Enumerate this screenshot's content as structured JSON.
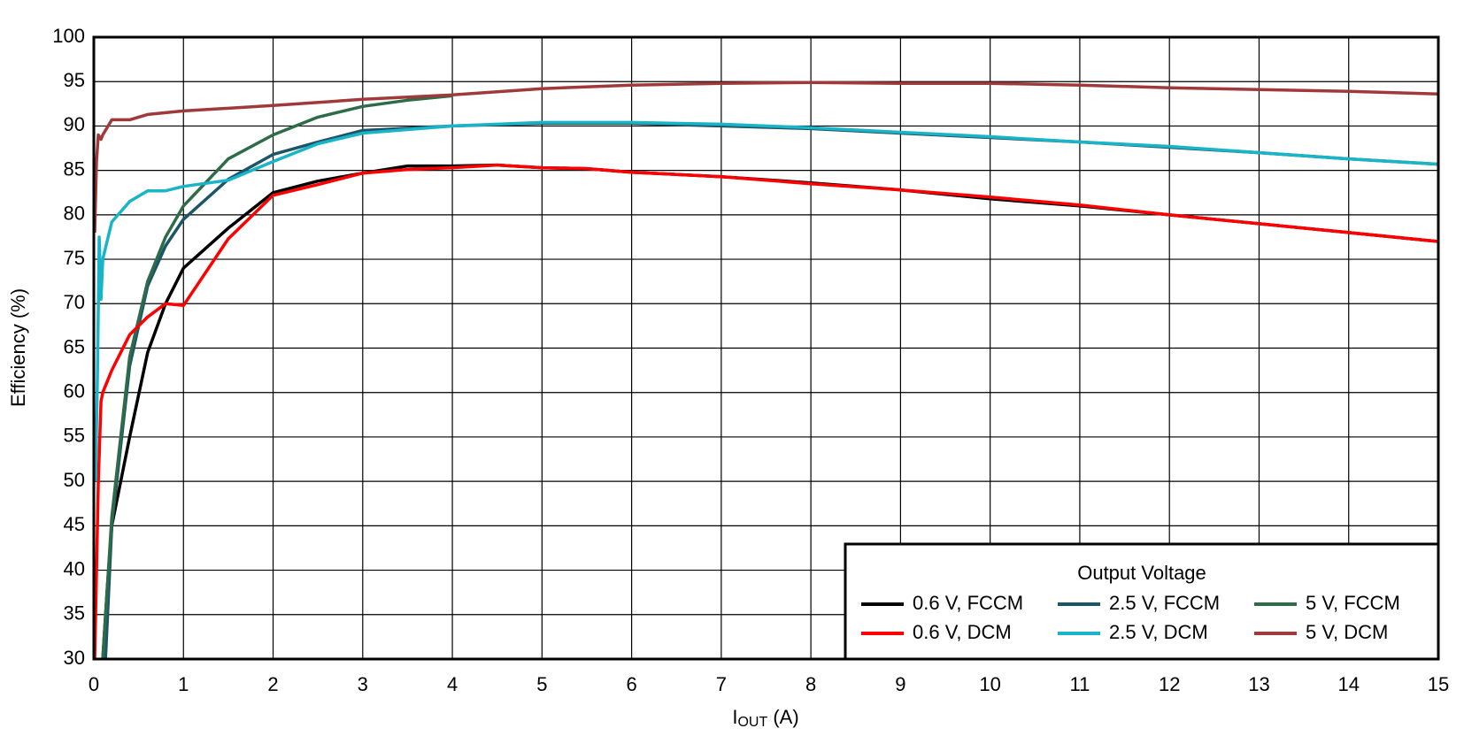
{
  "chart_data": {
    "type": "line",
    "x_label": {
      "main": "I",
      "sub": "OUT",
      "suffix": " (A)"
    },
    "y_label": "Efficiency (%)",
    "legend_title": "Output Voltage",
    "xlim": [
      0,
      15
    ],
    "xticks": [
      0,
      1,
      2,
      3,
      4,
      5,
      6,
      7,
      8,
      9,
      10,
      11,
      12,
      13,
      14,
      15
    ],
    "ylim": [
      30,
      100
    ],
    "yticks": [
      30,
      35,
      40,
      45,
      50,
      55,
      60,
      65,
      70,
      75,
      80,
      85,
      90,
      95,
      100
    ],
    "grid": true,
    "legend_position": "lower right",
    "series": [
      {
        "name": "0.6 V, FCCM",
        "color": "#000000",
        "x": [
          0.1,
          0.15,
          0.2,
          0.4,
          0.6,
          0.8,
          1,
          1.5,
          2,
          2.5,
          3,
          3.5,
          4,
          4.5,
          5,
          5.5,
          6,
          7,
          8,
          9,
          10,
          11,
          12,
          13,
          14,
          15
        ],
        "values": [
          30,
          38,
          45,
          55,
          64.5,
          70,
          74,
          78.5,
          82.5,
          83.8,
          84.7,
          85.5,
          85.5,
          85.6,
          85.3,
          85.2,
          84.8,
          84.3,
          83.6,
          82.8,
          81.8,
          81,
          80,
          79,
          78,
          77
        ]
      },
      {
        "name": "2.5 V, FCCM",
        "color": "#1d5568",
        "x": [
          0.13,
          0.2,
          0.4,
          0.6,
          0.8,
          1,
          1.5,
          2,
          2.5,
          3,
          4,
          5,
          6,
          7,
          8,
          9,
          10,
          11,
          12,
          13,
          14,
          15
        ],
        "values": [
          30,
          45,
          63,
          72,
          76.5,
          79.5,
          84,
          86.8,
          88.2,
          89.5,
          90,
          90.3,
          90.3,
          90,
          89.7,
          89.2,
          88.7,
          88.2,
          87.6,
          87,
          86.3,
          85.7
        ]
      },
      {
        "name": "5 V, FCCM",
        "color": "#2e6b48",
        "x": [
          0.1,
          0.2,
          0.4,
          0.6,
          0.8,
          1,
          1.5,
          2,
          2.5,
          3,
          3.5,
          4
        ],
        "values": [
          30,
          46,
          64,
          72.5,
          77.5,
          81,
          86.3,
          89,
          91,
          92.2,
          92.9,
          93.4
        ]
      },
      {
        "name": "0.6 V, DCM",
        "color": "#ff0000",
        "x": [
          0.01,
          0.05,
          0.08,
          0.1,
          0.2,
          0.4,
          0.6,
          0.8,
          1,
          1.5,
          2,
          2.5,
          3,
          3.5,
          4,
          4.5,
          5,
          5.5,
          6,
          7,
          8,
          9,
          10,
          11,
          12,
          13,
          14,
          15
        ],
        "values": [
          30,
          50,
          59,
          60,
          62.5,
          66.5,
          68.5,
          70,
          69.8,
          77.3,
          82.2,
          83.4,
          84.7,
          85.1,
          85.3,
          85.6,
          85.3,
          85.2,
          84.8,
          84.3,
          83.5,
          82.8,
          82,
          81.1,
          80,
          79,
          78,
          77
        ]
      },
      {
        "name": "2.5 V, DCM",
        "color": "#1ab4c8",
        "x": [
          0.02,
          0.04,
          0.06,
          0.08,
          0.1,
          0.2,
          0.4,
          0.6,
          0.8,
          1,
          1.5,
          2,
          2.5,
          3,
          4,
          5,
          6,
          7,
          8,
          9,
          10,
          11,
          12,
          13,
          14,
          15
        ],
        "values": [
          50,
          62,
          77.5,
          70.5,
          75,
          79.2,
          81.5,
          82.7,
          82.7,
          83.2,
          83.9,
          86,
          88,
          89.2,
          90,
          90.4,
          90.4,
          90.2,
          89.8,
          89.3,
          88.8,
          88.2,
          87.7,
          87,
          86.3,
          85.7
        ]
      },
      {
        "name": "5 V, DCM",
        "color": "#a03a3a",
        "x": [
          0.01,
          0.03,
          0.05,
          0.08,
          0.1,
          0.2,
          0.4,
          0.6,
          1,
          2,
          3,
          4,
          5,
          6,
          7,
          8,
          9,
          10,
          11,
          12,
          13,
          14,
          15
        ],
        "values": [
          78,
          86,
          89,
          88.5,
          89,
          90.7,
          90.7,
          91.3,
          91.7,
          92.3,
          93,
          93.5,
          94.2,
          94.6,
          94.8,
          94.9,
          94.8,
          94.8,
          94.6,
          94.3,
          94.1,
          93.9,
          93.6
        ]
      }
    ]
  }
}
